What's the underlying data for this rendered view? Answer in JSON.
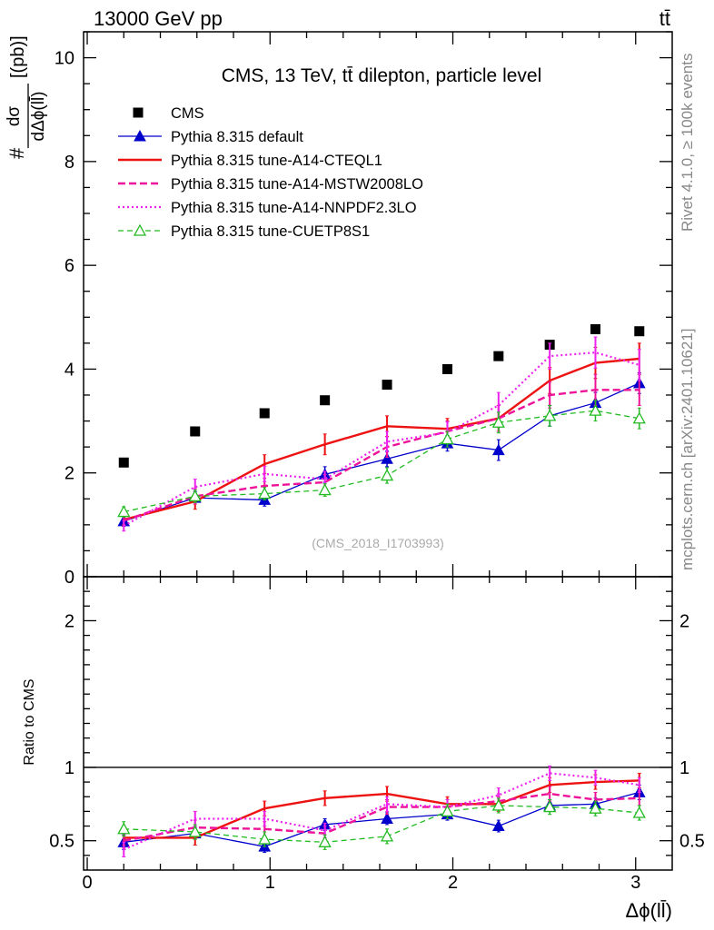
{
  "header": {
    "energy_label": "13000 GeV pp",
    "process_label": "tt̄"
  },
  "side_labels": {
    "rivet": "Rivet 4.1.0, ≥ 100k events",
    "mcplots": "mcplots.cern.ch [arXiv:2401.10621]"
  },
  "colors": {
    "cms": "#000000",
    "default": "#0000cc",
    "cteql1": "#ee1111",
    "mstw": "#ee1199",
    "nnpdf": "#ee22ee",
    "cuetp": "#22bb22"
  },
  "chart_data": {
    "type": "line",
    "title": "CMS, 13 TeV, tt̄ dilepton, particle level",
    "watermark": "(CMS_2018_I1703993)",
    "xlabel": "Δϕ(ll̄)",
    "ylabel_top": "#",
    "ylabel_frac_num": "dσ",
    "ylabel_frac_den": "dΔϕ(ll̄)",
    "ylabel_unit": "[(pb)]",
    "ratio_ylabel": "Ratio to CMS",
    "xlim": [
      -0.02,
      3.2
    ],
    "ylim_main": [
      0,
      10.5
    ],
    "ylim_ratio": [
      0.3,
      2.3
    ],
    "x_ticks": [
      "0",
      "1",
      "2",
      "3"
    ],
    "x_tick_values": [
      0,
      1,
      2,
      3
    ],
    "main_y_ticks": [
      "0",
      "2",
      "4",
      "6",
      "8",
      "10"
    ],
    "main_y_tick_values": [
      0,
      2,
      4,
      6,
      8,
      10
    ],
    "ratio_y_ticks": [
      "0.5",
      "1",
      "2"
    ],
    "ratio_y_tick_values": [
      0.5,
      1,
      2
    ],
    "x": [
      0.2,
      0.59,
      0.97,
      1.3,
      1.64,
      1.97,
      2.25,
      2.53,
      2.78,
      3.02
    ],
    "series": [
      {
        "key": "cms",
        "name": "CMS",
        "values": [
          2.2,
          2.8,
          3.15,
          3.4,
          3.7,
          4.0,
          4.25,
          4.47,
          4.77,
          4.73
        ],
        "errors": [
          0,
          0,
          0,
          0,
          0,
          0,
          0,
          0,
          0,
          0
        ],
        "ratio": [],
        "ratio_errors": []
      },
      {
        "key": "default",
        "name": "Pythia 8.315 default",
        "values": [
          1.07,
          1.52,
          1.48,
          1.97,
          2.27,
          2.57,
          2.44,
          3.1,
          3.35,
          3.73
        ],
        "errors": [
          0.1,
          0.12,
          0.12,
          0.15,
          0.15,
          0.15,
          0.2,
          0.2,
          0.2,
          0.2
        ],
        "ratio": [
          0.49,
          0.55,
          0.46,
          0.61,
          0.65,
          0.68,
          0.6,
          0.74,
          0.75,
          0.83
        ],
        "ratio_errors": [
          0.05,
          0.04,
          0.04,
          0.04,
          0.04,
          0.04,
          0.04,
          0.04,
          0.04,
          0.05
        ]
      },
      {
        "key": "cteql1",
        "name": "Pythia 8.315 tune-A14-CTEQL1",
        "values": [
          1.1,
          1.45,
          2.17,
          2.55,
          2.9,
          2.85,
          3.05,
          3.78,
          4.12,
          4.2
        ],
        "errors": [
          0.1,
          0.15,
          0.18,
          0.2,
          0.2,
          0.2,
          0.25,
          0.25,
          0.3,
          0.3
        ],
        "ratio": [
          0.52,
          0.52,
          0.72,
          0.79,
          0.82,
          0.75,
          0.75,
          0.88,
          0.9,
          0.91
        ],
        "ratio_errors": [
          0.05,
          0.05,
          0.05,
          0.05,
          0.05,
          0.05,
          0.05,
          0.05,
          0.05,
          0.05
        ]
      },
      {
        "key": "mstw",
        "name": "Pythia 8.315 tune-A14-MSTW2008LO",
        "values": [
          1.08,
          1.55,
          1.75,
          1.82,
          2.5,
          2.8,
          3.05,
          3.5,
          3.6,
          3.6
        ],
        "errors": [
          0.1,
          0.15,
          0.15,
          0.15,
          0.2,
          0.2,
          0.25,
          0.25,
          0.3,
          0.3
        ],
        "ratio": [
          0.5,
          0.59,
          0.58,
          0.55,
          0.73,
          0.73,
          0.77,
          0.82,
          0.78,
          0.79
        ],
        "ratio_errors": [
          0.05,
          0.05,
          0.05,
          0.05,
          0.05,
          0.05,
          0.05,
          0.05,
          0.05,
          0.05
        ]
      },
      {
        "key": "nnpdf",
        "name": "Pythia 8.315 tune-A14-NNPDF2.3LO",
        "values": [
          0.98,
          1.73,
          1.98,
          1.88,
          2.6,
          2.78,
          3.3,
          4.25,
          4.32,
          4.08
        ],
        "errors": [
          0.1,
          0.15,
          0.15,
          0.15,
          0.2,
          0.2,
          0.25,
          0.25,
          0.3,
          0.3
        ],
        "ratio": [
          0.44,
          0.65,
          0.65,
          0.57,
          0.75,
          0.73,
          0.81,
          0.96,
          0.93,
          0.88
        ],
        "ratio_errors": [
          0.05,
          0.05,
          0.05,
          0.05,
          0.05,
          0.05,
          0.05,
          0.05,
          0.05,
          0.05
        ]
      },
      {
        "key": "cuetp",
        "name": "Pythia 8.315 tune-CUETP8S1",
        "values": [
          1.25,
          1.55,
          1.6,
          1.67,
          1.95,
          2.65,
          2.97,
          3.1,
          3.2,
          3.05
        ],
        "errors": [
          0.1,
          0.12,
          0.12,
          0.12,
          0.15,
          0.15,
          0.2,
          0.2,
          0.2,
          0.2
        ],
        "ratio": [
          0.58,
          0.56,
          0.51,
          0.49,
          0.53,
          0.7,
          0.74,
          0.73,
          0.72,
          0.69
        ],
        "ratio_errors": [
          0.05,
          0.05,
          0.05,
          0.05,
          0.05,
          0.05,
          0.05,
          0.05,
          0.05,
          0.05
        ]
      }
    ]
  }
}
